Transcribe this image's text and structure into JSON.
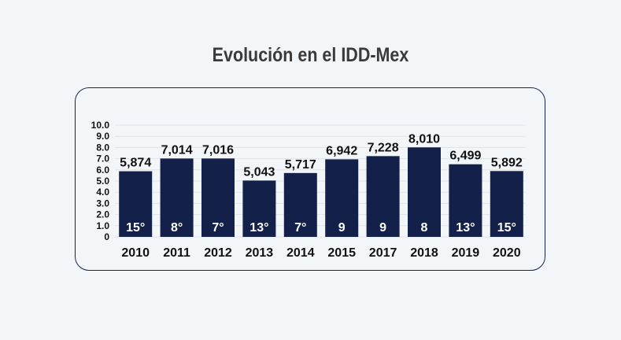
{
  "chart_data": {
    "type": "bar",
    "title": "Evolución en el IDD-Mex",
    "categories": [
      "2010",
      "2011",
      "2012",
      "2013",
      "2014",
      "2015",
      "2017",
      "2018",
      "2019",
      "2020"
    ],
    "values": [
      5.874,
      7.014,
      7.016,
      5.043,
      5.717,
      6.942,
      7.228,
      8.01,
      6.499,
      5.892
    ],
    "value_labels": [
      "5,874",
      "7,014",
      "7,016",
      "5,043",
      "5,717",
      "6,942",
      "7,228",
      "8,010",
      "6,499",
      "5,892"
    ],
    "rank_labels": [
      "15°",
      "8°",
      "7°",
      "13°",
      "7°",
      "9",
      "9",
      "8",
      "13°",
      "15°"
    ],
    "y_ticks": [
      "0",
      "1.0",
      "2.0",
      "3.0",
      "4.0",
      "5.0",
      "6.0",
      "7.0",
      "8.0",
      "9.0",
      "10.0"
    ],
    "ylim": [
      0,
      10
    ],
    "grid": true,
    "colors": {
      "bar": "#13204a",
      "grid": "#dfe3ea",
      "frame": "#1b2150"
    }
  }
}
